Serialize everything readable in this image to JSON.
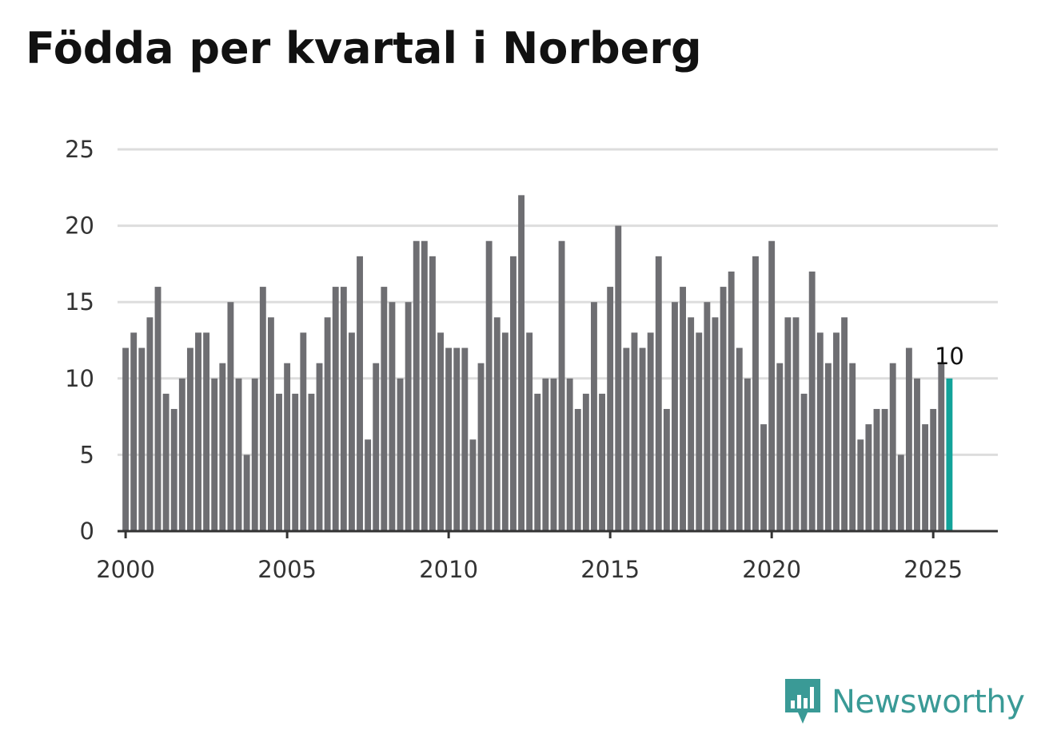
{
  "chart_data": {
    "type": "bar",
    "title": "Födda per kvartal i Norberg",
    "xlabel": "",
    "ylabel": "",
    "start_year": 2000,
    "periods_per_year": 4,
    "xlim": [
      1999.75,
      2027
    ],
    "ylim": [
      0,
      25
    ],
    "yticks": [
      0,
      5,
      10,
      15,
      20,
      25
    ],
    "xticks": [
      2000,
      2005,
      2010,
      2015,
      2020,
      2025
    ],
    "grid": true,
    "values": [
      12,
      13,
      12,
      14,
      16,
      9,
      8,
      10,
      12,
      13,
      13,
      10,
      11,
      15,
      10,
      5,
      10,
      16,
      14,
      9,
      11,
      9,
      13,
      9,
      11,
      14,
      16,
      16,
      13,
      18,
      6,
      11,
      16,
      15,
      10,
      15,
      19,
      19,
      18,
      13,
      12,
      12,
      12,
      6,
      11,
      19,
      14,
      13,
      18,
      22,
      13,
      9,
      10,
      10,
      19,
      10,
      8,
      9,
      15,
      9,
      16,
      20,
      12,
      13,
      12,
      13,
      18,
      8,
      15,
      16,
      14,
      13,
      15,
      14,
      16,
      17,
      12,
      10,
      18,
      7,
      19,
      11,
      14,
      14,
      9,
      17,
      13,
      11,
      13,
      14,
      11,
      6,
      7,
      8,
      8,
      11,
      5,
      12,
      10,
      7,
      8,
      11,
      10
    ],
    "highlight_index": 102,
    "annotation": {
      "index": 102,
      "text": "10"
    },
    "bar_color": "#6e6e72",
    "highlight_color": "#12a39a",
    "grid_color": "#dddddd",
    "axis_color": "#333333"
  },
  "brand": {
    "name": "Newsworthy",
    "logo_icon": "newsworthy-logo-icon",
    "color": "#3a9a96"
  }
}
